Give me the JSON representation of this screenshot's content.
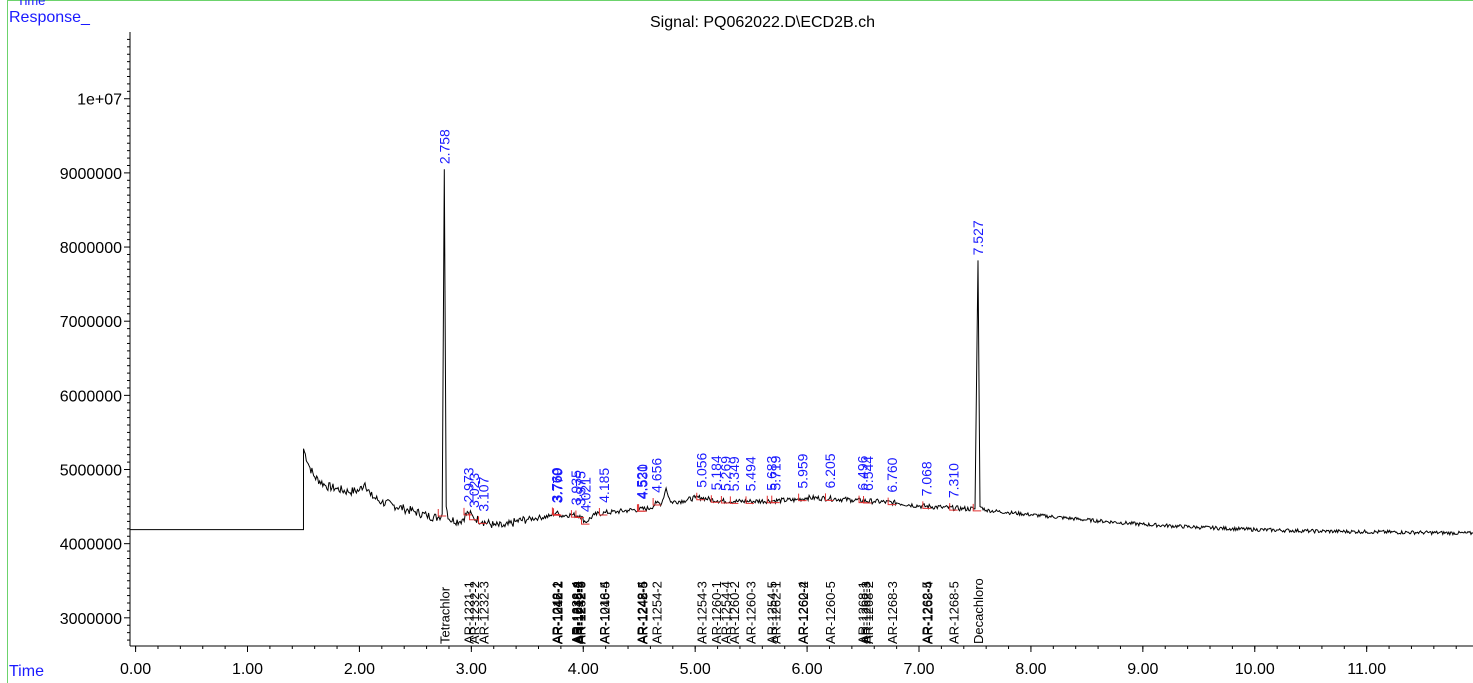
{
  "window": {
    "top_label": "Time"
  },
  "labels": {
    "response": "Response_",
    "time": "Time"
  },
  "chart_data": {
    "type": "line",
    "title": "Signal: PQ062022.D\\ECD2B.ch",
    "xlabel": "Time",
    "ylabel": "Response_",
    "xlim": [
      -0.05,
      11.95
    ],
    "ylim": [
      2620000,
      10900000
    ],
    "x_ticks": [
      {
        "value": 0,
        "label": "0.00"
      },
      {
        "value": 1,
        "label": "1.00"
      },
      {
        "value": 2,
        "label": "2.00"
      },
      {
        "value": 3,
        "label": "3.00"
      },
      {
        "value": 4,
        "label": "4.00"
      },
      {
        "value": 5,
        "label": "5.00"
      },
      {
        "value": 6,
        "label": "6.00"
      },
      {
        "value": 7,
        "label": "7.00"
      },
      {
        "value": 8,
        "label": "8.00"
      },
      {
        "value": 9,
        "label": "9.00"
      },
      {
        "value": 10,
        "label": "10.00"
      },
      {
        "value": 11,
        "label": "11.00"
      }
    ],
    "y_ticks": [
      {
        "value": 3000000,
        "label": "3000000"
      },
      {
        "value": 4000000,
        "label": "4000000"
      },
      {
        "value": 5000000,
        "label": "5000000"
      },
      {
        "value": 6000000,
        "label": "6000000"
      },
      {
        "value": 7000000,
        "label": "7000000"
      },
      {
        "value": 8000000,
        "label": "8000000"
      },
      {
        "value": 9000000,
        "label": "9000000"
      },
      {
        "value": 10000000,
        "label": "1e+07"
      }
    ],
    "colors": {
      "trace": "#000000",
      "peak_labels": "#1a1aff",
      "integration": "#e03030",
      "chrome": "#6cd36c"
    },
    "signal": {
      "pre_run": {
        "x": [
          -0.05,
          1.5
        ],
        "y": 4190000
      },
      "points": [
        [
          1.5,
          4190000
        ],
        [
          1.5,
          5280000
        ],
        [
          1.55,
          5050000
        ],
        [
          1.6,
          4900000
        ],
        [
          1.7,
          4780000
        ],
        [
          1.8,
          4740000
        ],
        [
          1.9,
          4700000
        ],
        [
          2.0,
          4720000
        ],
        [
          2.05,
          4820000
        ],
        [
          2.1,
          4650000
        ],
        [
          2.2,
          4560000
        ],
        [
          2.3,
          4520000
        ],
        [
          2.4,
          4470000
        ],
        [
          2.5,
          4430000
        ],
        [
          2.6,
          4380000
        ],
        [
          2.7,
          4350000
        ],
        [
          2.74,
          4400000
        ],
        [
          2.758,
          9050000
        ],
        [
          2.775,
          4500000
        ],
        [
          2.8,
          4330000
        ],
        [
          2.9,
          4300000
        ],
        [
          2.973,
          4420000
        ],
        [
          3.02,
          4350000
        ],
        [
          3.1,
          4300000
        ],
        [
          3.2,
          4250000
        ],
        [
          3.3,
          4230000
        ],
        [
          3.4,
          4300000
        ],
        [
          3.5,
          4330000
        ],
        [
          3.6,
          4350000
        ],
        [
          3.7,
          4370000
        ],
        [
          3.76,
          4420000
        ],
        [
          3.8,
          4380000
        ],
        [
          3.9,
          4390000
        ],
        [
          3.97,
          4380000
        ],
        [
          4.02,
          4290000
        ],
        [
          4.1,
          4390000
        ],
        [
          4.2,
          4420000
        ],
        [
          4.3,
          4430000
        ],
        [
          4.4,
          4450000
        ],
        [
          4.5,
          4460000
        ],
        [
          4.6,
          4480000
        ],
        [
          4.656,
          4550000
        ],
        [
          4.7,
          4540000
        ],
        [
          4.74,
          4750000
        ],
        [
          4.78,
          4560000
        ],
        [
          4.9,
          4580000
        ],
        [
          5.0,
          4620000
        ],
        [
          5.056,
          4620000
        ],
        [
          5.2,
          4580000
        ],
        [
          5.35,
          4570000
        ],
        [
          5.5,
          4570000
        ],
        [
          5.7,
          4580000
        ],
        [
          5.9,
          4590000
        ],
        [
          6.0,
          4620000
        ],
        [
          6.2,
          4610000
        ],
        [
          6.4,
          4590000
        ],
        [
          6.6,
          4570000
        ],
        [
          6.8,
          4550000
        ],
        [
          7.0,
          4510000
        ],
        [
          7.2,
          4490000
        ],
        [
          7.4,
          4470000
        ],
        [
          7.5,
          4470000
        ],
        [
          7.527,
          7820000
        ],
        [
          7.545,
          4500000
        ],
        [
          7.6,
          4450000
        ],
        [
          7.8,
          4420000
        ],
        [
          8.0,
          4390000
        ],
        [
          8.5,
          4320000
        ],
        [
          9.0,
          4260000
        ],
        [
          9.5,
          4220000
        ],
        [
          10.0,
          4190000
        ],
        [
          10.5,
          4170000
        ],
        [
          11.0,
          4160000
        ],
        [
          11.5,
          4150000
        ],
        [
          11.95,
          4140000
        ]
      ]
    },
    "peak_labels": [
      {
        "x": 2.758,
        "label": "2.758"
      },
      {
        "x": 2.973,
        "label": "2.973"
      },
      {
        "x": 3.023,
        "label": "3.023"
      },
      {
        "x": 3.107,
        "label": "3.107"
      },
      {
        "x": 3.76,
        "label": "3.760"
      },
      {
        "x": 3.765,
        "label": "3.769"
      },
      {
        "x": 3.77,
        "label": "3.770"
      },
      {
        "x": 3.935,
        "label": "3.935"
      },
      {
        "x": 3.975,
        "label": "3.975"
      },
      {
        "x": 4.021,
        "label": "4.021"
      },
      {
        "x": 4.185,
        "label": "4.185"
      },
      {
        "x": 4.521,
        "label": "4.521"
      },
      {
        "x": 4.53,
        "label": "4.530"
      },
      {
        "x": 4.656,
        "label": "4.656"
      },
      {
        "x": 5.056,
        "label": "5.056"
      },
      {
        "x": 5.184,
        "label": "5.184"
      },
      {
        "x": 5.269,
        "label": "5.269"
      },
      {
        "x": 5.349,
        "label": "5.349"
      },
      {
        "x": 5.494,
        "label": "5.494"
      },
      {
        "x": 5.683,
        "label": "5.683"
      },
      {
        "x": 5.719,
        "label": "5.719"
      },
      {
        "x": 5.959,
        "label": "5.959"
      },
      {
        "x": 6.205,
        "label": "6.205"
      },
      {
        "x": 6.496,
        "label": "6.496"
      },
      {
        "x": 6.544,
        "label": "6.544"
      },
      {
        "x": 6.76,
        "label": "6.760"
      },
      {
        "x": 7.068,
        "label": "7.068"
      },
      {
        "x": 7.31,
        "label": "7.310"
      },
      {
        "x": 7.527,
        "label": "7.527"
      }
    ],
    "compound_labels": [
      {
        "x": 2.758,
        "label": "Tetrachlor"
      },
      {
        "x": 2.973,
        "label": "AR-1221-1"
      },
      {
        "x": 3.023,
        "label": "AR-1232-2"
      },
      {
        "x": 3.107,
        "label": "AR-1232-3"
      },
      {
        "x": 3.76,
        "label": "AR-1242-1"
      },
      {
        "x": 3.763,
        "label": "AR-1248-1"
      },
      {
        "x": 3.767,
        "label": "AR-1016-2"
      },
      {
        "x": 3.77,
        "label": "AR-1242-2"
      },
      {
        "x": 3.935,
        "label": "AR-1232-4"
      },
      {
        "x": 3.945,
        "label": "AR-1248-2"
      },
      {
        "x": 3.955,
        "label": "AR-1016-3"
      },
      {
        "x": 3.965,
        "label": "AR-1242-3"
      },
      {
        "x": 3.975,
        "label": "AR-1232-5"
      },
      {
        "x": 4.185,
        "label": "AR-1016-4"
      },
      {
        "x": 4.19,
        "label": "AR-1248-5"
      },
      {
        "x": 4.521,
        "label": "AR-1248-4"
      },
      {
        "x": 4.525,
        "label": "AR-1242-5"
      },
      {
        "x": 4.53,
        "label": "AR-1248-5"
      },
      {
        "x": 4.656,
        "label": "AR-1254-2"
      },
      {
        "x": 5.056,
        "label": "AR-1254-3"
      },
      {
        "x": 5.184,
        "label": "AR-1260-1"
      },
      {
        "x": 5.269,
        "label": "AR-1254-4"
      },
      {
        "x": 5.349,
        "label": "AR-1260-2"
      },
      {
        "x": 5.494,
        "label": "AR-1260-3"
      },
      {
        "x": 5.683,
        "label": "AR-1254-5"
      },
      {
        "x": 5.719,
        "label": "AR-1262-1"
      },
      {
        "x": 5.959,
        "label": "AR-1260-4"
      },
      {
        "x": 5.965,
        "label": "AR-1262-2"
      },
      {
        "x": 6.205,
        "label": "AR-1260-5"
      },
      {
        "x": 6.496,
        "label": "AR-1268-1"
      },
      {
        "x": 6.52,
        "label": "AR-1262-3"
      },
      {
        "x": 6.544,
        "label": "AR-1268-2"
      },
      {
        "x": 6.76,
        "label": "AR-1268-3"
      },
      {
        "x": 7.068,
        "label": "AR-1262-5"
      },
      {
        "x": 7.075,
        "label": "AR-1268-4"
      },
      {
        "x": 7.31,
        "label": "AR-1268-5"
      },
      {
        "x": 7.527,
        "label": "Decachloro"
      }
    ],
    "integration_marks": [
      2.74,
      2.97,
      3.02,
      3.1,
      3.76,
      3.77,
      3.93,
      3.97,
      4.02,
      4.18,
      4.52,
      4.53,
      4.66,
      5.05,
      5.18,
      5.27,
      5.35,
      5.49,
      5.68,
      5.72,
      5.96,
      6.2,
      6.5,
      6.54,
      6.76,
      7.07,
      7.31,
      7.52
    ]
  }
}
